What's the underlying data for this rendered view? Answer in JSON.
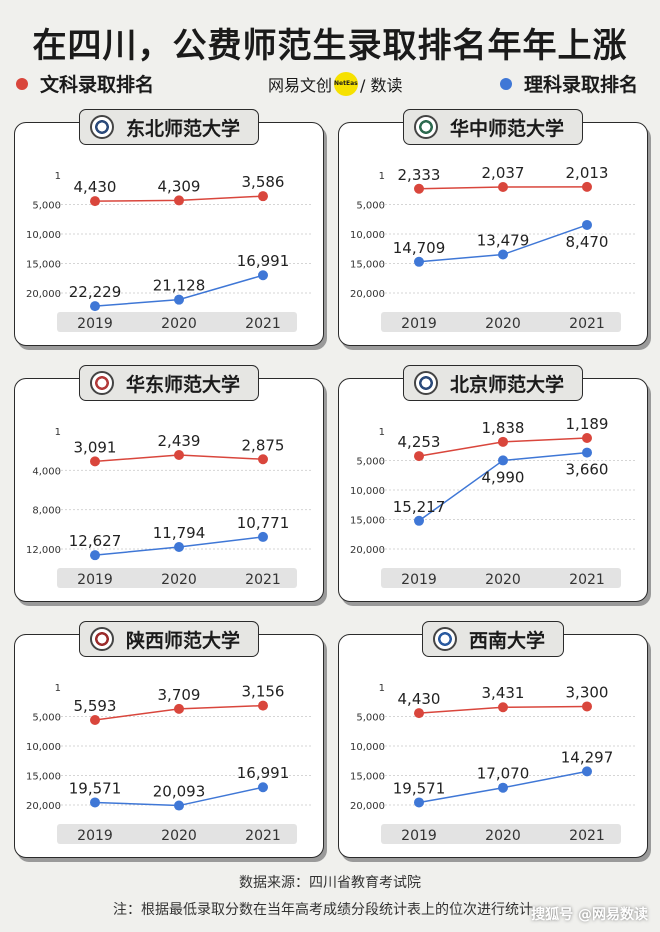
{
  "title": "在四川，公费师范生录取排名年年上涨",
  "legend": {
    "arts": {
      "label": "文科录取排名",
      "color": "#d9463c"
    },
    "science": {
      "label": "理科录取排名",
      "color": "#3f77d6"
    }
  },
  "brand": {
    "left": "网易文创",
    "badge": "NetEase",
    "right": "/ 数读"
  },
  "chart_data": [
    {
      "type": "line",
      "title": "东北师范大学",
      "seal_color": "#2b4a7a",
      "categories": [
        "2019",
        "2020",
        "2021"
      ],
      "yticks": [
        "1",
        "5,000",
        "10,000",
        "15,000",
        "20,000"
      ],
      "ylim": [
        1,
        20000
      ],
      "y_inverted": true,
      "series": [
        {
          "name": "文科录取排名",
          "values": [
            4430,
            4309,
            3586
          ],
          "labels": [
            "4,430",
            "4,309",
            "3,586"
          ]
        },
        {
          "name": "理科录取排名",
          "values": [
            22229,
            21128,
            16991
          ],
          "labels": [
            "22,229",
            "21,128",
            "16,991"
          ]
        }
      ]
    },
    {
      "type": "line",
      "title": "华中师范大学",
      "seal_color": "#2d6a4f",
      "categories": [
        "2019",
        "2020",
        "2021"
      ],
      "yticks": [
        "1",
        "5,000",
        "10,000",
        "15,000",
        "20,000"
      ],
      "ylim": [
        1,
        20000
      ],
      "y_inverted": true,
      "series": [
        {
          "name": "文科录取排名",
          "values": [
            2333,
            2037,
            2013
          ],
          "labels": [
            "2,333",
            "2,037",
            "2,013"
          ]
        },
        {
          "name": "理科录取排名",
          "values": [
            14709,
            13479,
            8470
          ],
          "labels": [
            "14,709",
            "13,479",
            "8,470"
          ]
        }
      ]
    },
    {
      "type": "line",
      "title": "华东师范大学",
      "seal_color": "#b23a3a",
      "categories": [
        "2019",
        "2020",
        "2021"
      ],
      "yticks": [
        "1",
        "4,000",
        "8,000",
        "12,000"
      ],
      "ylim": [
        1,
        12000
      ],
      "y_inverted": true,
      "series": [
        {
          "name": "文科录取排名",
          "values": [
            3091,
            2439,
            2875
          ],
          "labels": [
            "3,091",
            "2,439",
            "2,875"
          ]
        },
        {
          "name": "理科录取排名",
          "values": [
            12627,
            11794,
            10771
          ],
          "labels": [
            "12,627",
            "11,794",
            "10,771"
          ]
        }
      ]
    },
    {
      "type": "line",
      "title": "北京师范大学",
      "seal_color": "#2b4a7a",
      "categories": [
        "2019",
        "2020",
        "2021"
      ],
      "yticks": [
        "1",
        "5,000",
        "10,000",
        "15,000",
        "20,000"
      ],
      "ylim": [
        1,
        20000
      ],
      "y_inverted": true,
      "series": [
        {
          "name": "文科录取排名",
          "values": [
            4253,
            1838,
            1189
          ],
          "labels": [
            "4,253",
            "1,838",
            "1,189"
          ]
        },
        {
          "name": "理科录取排名",
          "values": [
            15217,
            4990,
            3660
          ],
          "labels": [
            "15,217",
            "4,990",
            "3,660"
          ]
        }
      ]
    },
    {
      "type": "line",
      "title": "陕西师范大学",
      "seal_color": "#9b2c2c",
      "categories": [
        "2019",
        "2020",
        "2021"
      ],
      "yticks": [
        "1",
        "5,000",
        "10,000",
        "15,000",
        "20,000"
      ],
      "ylim": [
        1,
        20000
      ],
      "y_inverted": true,
      "series": [
        {
          "name": "文科录取排名",
          "values": [
            5593,
            3709,
            3156
          ],
          "labels": [
            "5,593",
            "3,709",
            "3,156"
          ]
        },
        {
          "name": "理科录取排名",
          "values": [
            19571,
            20093,
            16991
          ],
          "labels": [
            "19,571",
            "20,093",
            "16,991"
          ]
        }
      ]
    },
    {
      "type": "line",
      "title": "西南大学",
      "seal_color": "#2a5aa0",
      "categories": [
        "2019",
        "2020",
        "2021"
      ],
      "yticks": [
        "1",
        "5,000",
        "10,000",
        "15,000",
        "20,000"
      ],
      "ylim": [
        1,
        20000
      ],
      "y_inverted": true,
      "series": [
        {
          "name": "文科录取排名",
          "values": [
            4430,
            3431,
            3300
          ],
          "labels": [
            "4,430",
            "3,431",
            "3,300"
          ]
        },
        {
          "name": "理科录取排名",
          "values": [
            19571,
            17070,
            14297
          ],
          "labels": [
            "19,571",
            "17,070",
            "14,297"
          ]
        }
      ]
    }
  ],
  "footer": {
    "source": "数据来源：四川省教育考试院",
    "note": "注：根据最低录取分数在当年高考成绩分段统计表上的位次进行统计。",
    "watermark": "搜狐号 @网易数读"
  }
}
